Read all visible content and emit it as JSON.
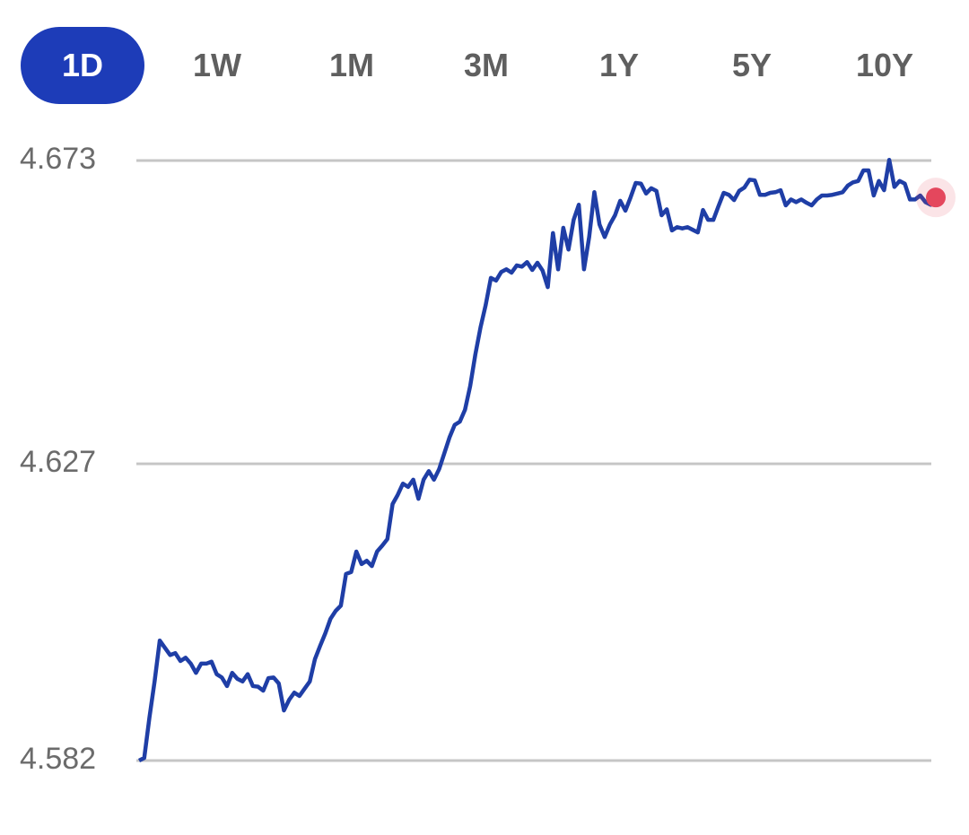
{
  "tabs": [
    {
      "label": "1D",
      "active": true
    },
    {
      "label": "1W",
      "active": false
    },
    {
      "label": "1M",
      "active": false
    },
    {
      "label": "3M",
      "active": false
    },
    {
      "label": "1Y",
      "active": false
    },
    {
      "label": "5Y",
      "active": false
    },
    {
      "label": "10Y",
      "active": false
    }
  ],
  "chart_data": {
    "type": "line",
    "color": "#1f3ea6",
    "last_point_color": "#e4475d",
    "grid": true,
    "ylim": [
      4.582,
      4.673
    ],
    "yticks": [
      {
        "value": 4.582,
        "label": "4.582"
      },
      {
        "value": 4.627,
        "label": "4.627"
      },
      {
        "value": 4.673,
        "label": "4.673"
      }
    ],
    "values": [
      4.582,
      4.5824,
      4.5885,
      4.594,
      4.6002,
      4.5991,
      4.598,
      4.5983,
      4.5971,
      4.5976,
      4.5967,
      4.5953,
      4.5967,
      4.5967,
      4.597,
      4.5951,
      4.5946,
      4.5933,
      4.5953,
      4.5944,
      4.594,
      4.5951,
      4.5933,
      4.5932,
      4.5926,
      4.5945,
      4.5946,
      4.5937,
      4.5896,
      4.5912,
      4.5923,
      4.5918,
      4.5929,
      4.594,
      4.5974,
      4.5994,
      4.6013,
      4.6035,
      4.6047,
      4.6055,
      4.6103,
      4.6106,
      4.6137,
      4.6118,
      4.6123,
      4.6115,
      4.6137,
      4.6146,
      4.6156,
      4.6209,
      4.6223,
      4.624,
      4.6235,
      4.6246,
      4.6217,
      4.6246,
      4.6259,
      4.6246,
      4.6262,
      4.6286,
      4.631,
      4.6329,
      4.6334,
      4.6352,
      4.6388,
      4.6436,
      4.6477,
      4.6511,
      4.6552,
      4.6548,
      4.6561,
      4.6565,
      4.656,
      4.6571,
      4.6569,
      4.6576,
      4.6564,
      4.6575,
      4.6563,
      4.6538,
      4.662,
      4.6565,
      4.6628,
      4.6595,
      4.664,
      4.6663,
      4.6565,
      4.6614,
      4.6682,
      4.6633,
      4.6614,
      4.6633,
      4.6647,
      4.6669,
      4.6654,
      4.6674,
      4.6696,
      4.6695,
      4.668,
      4.6688,
      4.6684,
      4.6647,
      4.6656,
      4.6624,
      4.6629,
      4.6627,
      4.6629,
      4.6625,
      4.6621,
      4.6655,
      4.664,
      4.664,
      4.6661,
      4.6681,
      4.6678,
      4.667,
      4.6684,
      4.6689,
      4.6701,
      4.67,
      4.6678,
      4.6678,
      4.6681,
      4.6682,
      4.6685,
      4.6662,
      4.6671,
      4.6667,
      4.6671,
      4.6666,
      4.6662,
      4.6671,
      4.6677,
      4.6677,
      4.6678,
      4.668,
      4.6682,
      4.6692,
      4.6697,
      4.6699,
      4.6715,
      4.6715,
      4.6677,
      4.6699,
      4.6685,
      4.6731,
      4.669,
      4.6699,
      4.6695,
      4.6671,
      4.6671,
      4.6677,
      4.6667,
      4.6663,
      4.6674
    ]
  }
}
